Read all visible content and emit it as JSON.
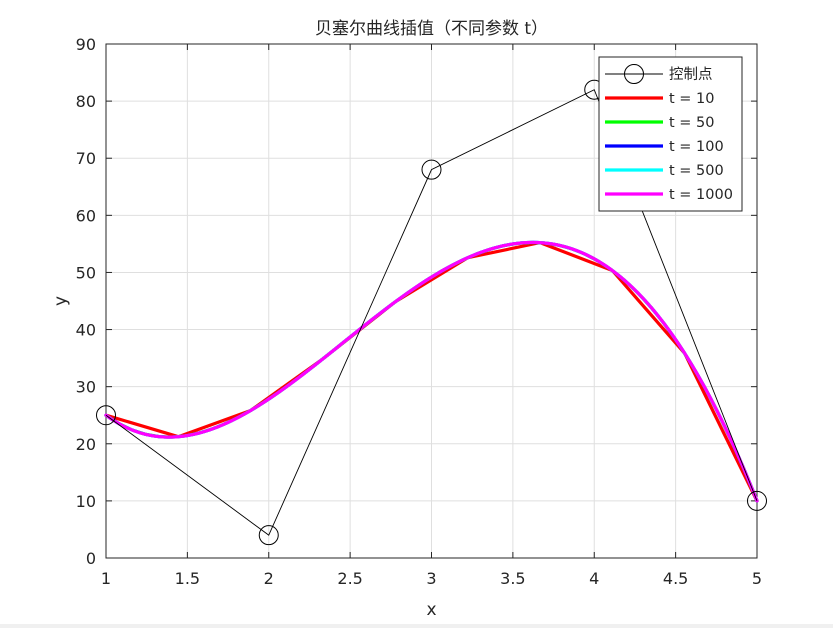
{
  "chart_data": {
    "type": "line",
    "title": "贝塞尔曲线插值（不同参数 t）",
    "xlabel": "x",
    "ylabel": "y",
    "xlim": [
      1,
      5
    ],
    "ylim": [
      0,
      90
    ],
    "x_ticks": [
      1,
      1.5,
      2,
      2.5,
      3,
      3.5,
      4,
      4.5,
      5
    ],
    "x_tick_labels": [
      "1",
      "1.5",
      "2",
      "2.5",
      "3",
      "3.5",
      "4",
      "4.5",
      "5"
    ],
    "y_ticks": [
      0,
      10,
      20,
      30,
      40,
      50,
      60,
      70,
      80,
      90
    ],
    "y_tick_labels": [
      "0",
      "10",
      "20",
      "30",
      "40",
      "50",
      "60",
      "70",
      "80",
      "90"
    ],
    "grid": true,
    "legend_position": "top-right",
    "control_points": {
      "name": "控制点",
      "color": "#000000",
      "marker": "circle",
      "x": [
        1,
        2,
        3,
        4,
        5
      ],
      "y": [
        25,
        4,
        68,
        82,
        10
      ]
    },
    "series": [
      {
        "name": "t = 10",
        "color": "#ff0000",
        "samples": 10
      },
      {
        "name": "t = 50",
        "color": "#00ff00",
        "samples": 50
      },
      {
        "name": "t = 100",
        "color": "#0000ff",
        "samples": 100
      },
      {
        "name": "t = 500",
        "color": "#00ffff",
        "samples": 500
      },
      {
        "name": "t = 1000",
        "color": "#ff00ff",
        "samples": 1000
      }
    ]
  }
}
